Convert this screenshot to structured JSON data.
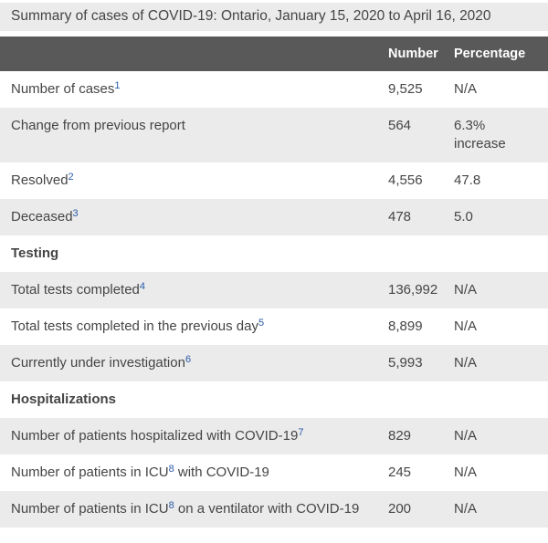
{
  "title": "Summary of cases of COVID-19: Ontario, January 15, 2020 to April 16, 2020",
  "colors": {
    "title_bg": "#ebebeb",
    "header_bg": "#595959",
    "header_text": "#ffffff",
    "stripe_bg": "#ebebeb",
    "body_text": "#454545",
    "footnote_link": "#2a5caa"
  },
  "table": {
    "headers": {
      "label": "",
      "number": "Number",
      "percentage": "Percentage"
    },
    "rows": [
      {
        "kind": "data",
        "parts": [
          {
            "t": "Number of cases"
          },
          {
            "s": "1"
          }
        ],
        "number": "9,525",
        "percentage": "N/A"
      },
      {
        "kind": "data",
        "parts": [
          {
            "t": "Change from previous report"
          }
        ],
        "number": "564",
        "percentage": "6.3% increase"
      },
      {
        "kind": "data",
        "parts": [
          {
            "t": "Resolved"
          },
          {
            "s": "2"
          }
        ],
        "number": "4,556",
        "percentage": "47.8"
      },
      {
        "kind": "data",
        "parts": [
          {
            "t": "Deceased"
          },
          {
            "s": "3"
          }
        ],
        "number": "478",
        "percentage": "5.0"
      },
      {
        "kind": "section",
        "label": "Testing"
      },
      {
        "kind": "data",
        "parts": [
          {
            "t": "Total tests completed"
          },
          {
            "s": "4"
          }
        ],
        "number": "136,992",
        "percentage": "N/A"
      },
      {
        "kind": "data",
        "parts": [
          {
            "t": "Total tests completed in the previous day"
          },
          {
            "s": "5"
          }
        ],
        "number": "8,899",
        "percentage": "N/A"
      },
      {
        "kind": "data",
        "parts": [
          {
            "t": "Currently under investigation"
          },
          {
            "s": "6"
          }
        ],
        "number": "5,993",
        "percentage": "N/A"
      },
      {
        "kind": "section",
        "label": "Hospitalizations"
      },
      {
        "kind": "data",
        "parts": [
          {
            "t": "Number of patients hospitalized with COVID-19"
          },
          {
            "s": "7"
          }
        ],
        "number": "829",
        "percentage": "N/A"
      },
      {
        "kind": "data",
        "parts": [
          {
            "t": "Number of patients in ICU"
          },
          {
            "s": "8"
          },
          {
            "t": " with COVID-19"
          }
        ],
        "number": "245",
        "percentage": "N/A"
      },
      {
        "kind": "data",
        "parts": [
          {
            "t": "Number of patients in ICU"
          },
          {
            "s": "8"
          },
          {
            "t": " on a ventilator with COVID-19"
          }
        ],
        "number": "200",
        "percentage": "N/A"
      }
    ]
  }
}
